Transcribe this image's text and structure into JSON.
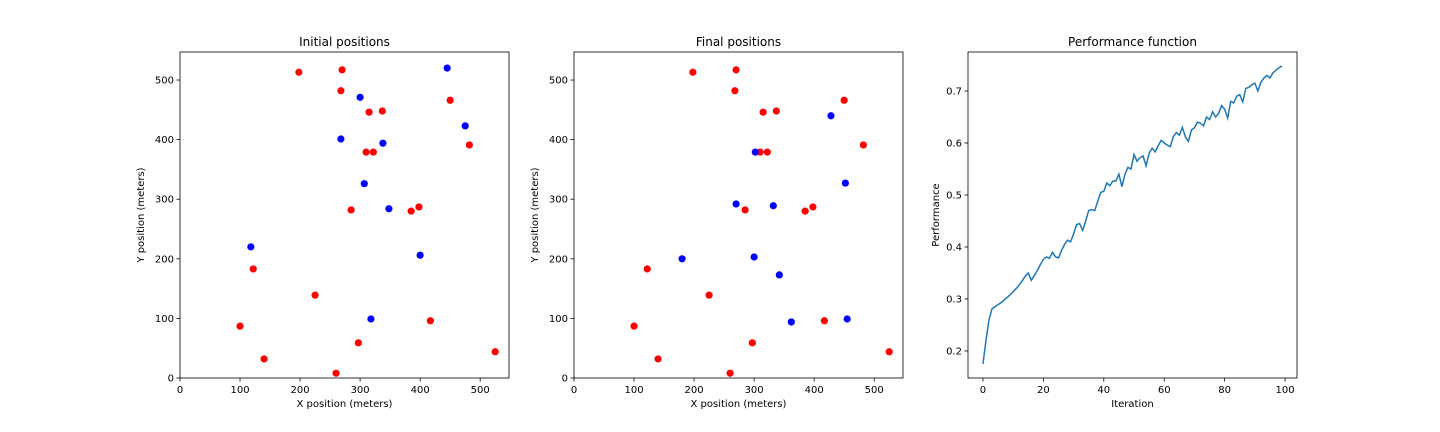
{
  "chart_data": [
    {
      "type": "scatter",
      "title": "Initial positions",
      "xlabel": "X position (meters)",
      "ylabel": "Y position (meters)",
      "xlim": [
        0,
        548
      ],
      "ylim": [
        0,
        547
      ],
      "xticks": [
        0,
        100,
        200,
        300,
        400,
        500
      ],
      "yticks": [
        0,
        100,
        200,
        300,
        400,
        500
      ],
      "series": [
        {
          "color": "#ff0000",
          "x": [
            198,
            270,
            268,
            315,
            337,
            450,
            482,
            310,
            322,
            285,
            385,
            398,
            122,
            225,
            100,
            417,
            297,
            140,
            260,
            525
          ],
          "y": [
            513,
            517,
            482,
            446,
            448,
            466,
            391,
            379,
            379,
            282,
            280,
            287,
            183,
            139,
            87,
            96,
            59,
            32,
            8,
            44
          ]
        },
        {
          "color": "#0000ff",
          "x": [
            445,
            300,
            475,
            268,
            338,
            307,
            348,
            118,
            400,
            318
          ],
          "y": [
            520,
            471,
            423,
            401,
            394,
            326,
            284,
            220,
            206,
            99
          ]
        }
      ]
    },
    {
      "type": "scatter",
      "title": "Final positions",
      "xlabel": "X position (meters)",
      "ylabel": "Y position (meters)",
      "xlim": [
        0,
        548
      ],
      "ylim": [
        0,
        547
      ],
      "xticks": [
        0,
        100,
        200,
        300,
        400,
        500
      ],
      "yticks": [
        0,
        100,
        200,
        300,
        400,
        500
      ],
      "series": [
        {
          "color": "#ff0000",
          "x": [
            198,
            270,
            268,
            315,
            337,
            450,
            482,
            310,
            322,
            285,
            385,
            398,
            122,
            225,
            100,
            417,
            297,
            140,
            260,
            525
          ],
          "y": [
            513,
            517,
            482,
            446,
            448,
            466,
            391,
            379,
            379,
            282,
            280,
            287,
            183,
            139,
            87,
            96,
            59,
            32,
            8,
            44
          ]
        },
        {
          "color": "#0000ff",
          "x": [
            428,
            302,
            452,
            270,
            332,
            180,
            300,
            342,
            362,
            455
          ],
          "y": [
            440,
            379,
            327,
            292,
            289,
            200,
            203,
            173,
            94,
            99
          ]
        }
      ]
    },
    {
      "type": "line",
      "title": "Performance function",
      "xlabel": "Iteration",
      "ylabel": "Performance",
      "xlim": [
        -4.95,
        103.95
      ],
      "ylim": [
        0.148,
        0.775
      ],
      "xticks": [
        0,
        20,
        40,
        60,
        80,
        100
      ],
      "yticks": [
        0.2,
        0.3,
        0.4,
        0.5,
        0.6,
        0.7
      ],
      "x": [
        0,
        1,
        2,
        3,
        4,
        5,
        6,
        7,
        8,
        9,
        10,
        11,
        12,
        13,
        14,
        15,
        16,
        17,
        18,
        19,
        20,
        21,
        22,
        23,
        24,
        25,
        26,
        27,
        28,
        29,
        30,
        31,
        32,
        33,
        34,
        35,
        36,
        37,
        38,
        39,
        40,
        41,
        42,
        43,
        44,
        45,
        46,
        47,
        48,
        49,
        50,
        51,
        52,
        53,
        54,
        55,
        56,
        57,
        58,
        59,
        60,
        61,
        62,
        63,
        64,
        65,
        66,
        67,
        68,
        69,
        70,
        71,
        72,
        73,
        74,
        75,
        76,
        77,
        78,
        79,
        80,
        81,
        82,
        83,
        84,
        85,
        86,
        87,
        88,
        89,
        90,
        91,
        92,
        93,
        94,
        95,
        96,
        97,
        98,
        99
      ],
      "series": [
        {
          "color": "#1f77b4",
          "values": [
            0.175,
            0.22,
            0.26,
            0.281,
            0.285,
            0.289,
            0.293,
            0.298,
            0.303,
            0.308,
            0.314,
            0.32,
            0.327,
            0.335,
            0.344,
            0.35,
            0.336,
            0.345,
            0.355,
            0.366,
            0.376,
            0.381,
            0.378,
            0.39,
            0.381,
            0.379,
            0.393,
            0.405,
            0.413,
            0.41,
            0.425,
            0.443,
            0.445,
            0.432,
            0.45,
            0.47,
            0.472,
            0.47,
            0.488,
            0.505,
            0.507,
            0.523,
            0.518,
            0.527,
            0.527,
            0.54,
            0.516,
            0.54,
            0.553,
            0.55,
            0.578,
            0.565,
            0.572,
            0.575,
            0.556,
            0.58,
            0.59,
            0.583,
            0.595,
            0.605,
            0.6,
            0.596,
            0.593,
            0.612,
            0.62,
            0.615,
            0.63,
            0.612,
            0.603,
            0.625,
            0.629,
            0.64,
            0.638,
            0.633,
            0.65,
            0.645,
            0.66,
            0.65,
            0.657,
            0.672,
            0.665,
            0.648,
            0.68,
            0.677,
            0.69,
            0.693,
            0.679,
            0.705,
            0.707,
            0.712,
            0.715,
            0.7,
            0.717,
            0.725,
            0.73,
            0.725,
            0.735,
            0.74,
            0.745,
            0.748
          ]
        }
      ]
    }
  ]
}
